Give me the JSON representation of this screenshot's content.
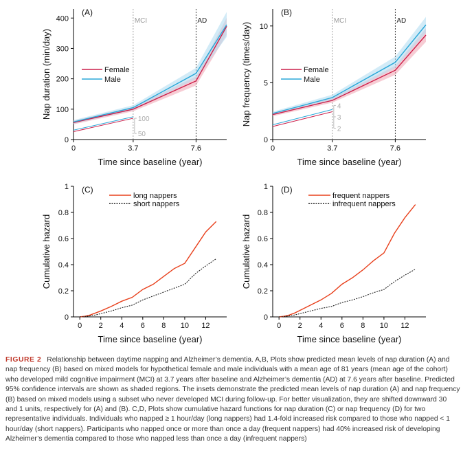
{
  "chart_data": [
    {
      "type": "line",
      "panel_label": "(A)",
      "xlabel": "Time since baseline (year)",
      "ylabel": "Nap duration (min/day)",
      "xlim": [
        0,
        9.5
      ],
      "ylim": [
        0,
        430
      ],
      "xticks": [
        0,
        3.7,
        7.6
      ],
      "xtick_labels": [
        "0",
        "3.7",
        "7.6"
      ],
      "yticks": [
        0,
        100,
        200,
        300,
        400
      ],
      "vlines": [
        {
          "x": 3.7,
          "label": "MCI",
          "color": "#999999"
        },
        {
          "x": 7.6,
          "label": "AD",
          "color": "#222222"
        }
      ],
      "legend": "center-left",
      "series": [
        {
          "name": "Female",
          "color": "#cc1f4a",
          "band_color": "#f2aab8",
          "x": [
            0,
            3.7,
            7.6,
            9.5
          ],
          "values": [
            56,
            100,
            193,
            373
          ],
          "lower": [
            50,
            93,
            178,
            345
          ],
          "upper": [
            62,
            107,
            208,
            401
          ]
        },
        {
          "name": "Male",
          "color": "#29a7d8",
          "band_color": "#b4ddf1",
          "x": [
            0,
            3.7,
            7.6,
            9.5
          ],
          "values": [
            58,
            105,
            218,
            378
          ],
          "lower": [
            52,
            97,
            200,
            338
          ],
          "upper": [
            64,
            113,
            236,
            420
          ]
        }
      ],
      "inset": {
        "x": [
          0,
          3.7
        ],
        "series": [
          {
            "name": "Female",
            "values": [
              26,
              70
            ]
          },
          {
            "name": "Male",
            "values": [
              31,
              75
            ]
          }
        ],
        "ticks": [
          100,
          50
        ],
        "shift": 30
      }
    },
    {
      "type": "line",
      "panel_label": "(B)",
      "xlabel": "Time since baseline (year)",
      "ylabel": "Nap frequency (times/day)",
      "xlim": [
        0,
        9.5
      ],
      "ylim": [
        0,
        11.5
      ],
      "xticks": [
        0,
        3.7,
        7.6
      ],
      "xtick_labels": [
        "0",
        "3.7",
        "7.6"
      ],
      "yticks": [
        0,
        5,
        10
      ],
      "vlines": [
        {
          "x": 3.7,
          "label": "MCI",
          "color": "#999999"
        },
        {
          "x": 7.6,
          "label": "AD",
          "color": "#222222"
        }
      ],
      "legend": "center-left",
      "series": [
        {
          "name": "Female",
          "color": "#cc1f4a",
          "band_color": "#f2aab8",
          "x": [
            0,
            3.7,
            7.6,
            9.5
          ],
          "values": [
            2.2,
            3.45,
            6.1,
            9.2
          ],
          "lower": [
            2.05,
            3.25,
            5.7,
            8.6
          ],
          "upper": [
            2.35,
            3.65,
            6.5,
            9.8
          ]
        },
        {
          "name": "Male",
          "color": "#29a7d8",
          "band_color": "#b4ddf1",
          "x": [
            0,
            3.7,
            7.6,
            9.5
          ],
          "values": [
            2.3,
            3.7,
            6.8,
            10.1
          ],
          "lower": [
            2.15,
            3.45,
            6.3,
            9.4
          ],
          "upper": [
            2.45,
            3.95,
            7.3,
            10.8
          ]
        }
      ],
      "inset": {
        "x": [
          0,
          3.7
        ],
        "series": [
          {
            "name": "Female",
            "values": [
              1.15,
              2.45
            ]
          },
          {
            "name": "Male",
            "values": [
              1.3,
              2.65
            ]
          }
        ],
        "ticks": [
          4,
          3,
          2
        ],
        "shift": 1
      }
    },
    {
      "type": "line",
      "panel_label": "(C)",
      "xlabel": "Time since baseline (year)",
      "ylabel": "Cumulative hazard",
      "xlim": [
        -0.6,
        14
      ],
      "ylim": [
        0,
        1
      ],
      "xticks": [
        0,
        2,
        4,
        6,
        8,
        10,
        12
      ],
      "yticks": [
        0,
        0.2,
        0.4,
        0.6,
        0.8,
        1
      ],
      "ytick_labels": [
        "0",
        "0.2",
        "0.4",
        "0.6",
        "0.8",
        "1"
      ],
      "legend": "top",
      "series": [
        {
          "name": "long nappers",
          "color": "#e8401c",
          "dash": "",
          "x": [
            0,
            0.5,
            1,
            1.5,
            2,
            3,
            4,
            5,
            6,
            7,
            8,
            9,
            10,
            11,
            12,
            13
          ],
          "values": [
            0,
            0.005,
            0.015,
            0.03,
            0.045,
            0.08,
            0.12,
            0.15,
            0.21,
            0.25,
            0.31,
            0.37,
            0.41,
            0.53,
            0.65,
            0.73
          ]
        },
        {
          "name": "short nappers",
          "color": "#222222",
          "dash": "2,1.5",
          "x": [
            0,
            0.5,
            1,
            1.5,
            2,
            3,
            4,
            5,
            6,
            7,
            8,
            9,
            10,
            11,
            12,
            13
          ],
          "values": [
            0,
            0.003,
            0.008,
            0.015,
            0.025,
            0.045,
            0.07,
            0.09,
            0.13,
            0.16,
            0.19,
            0.22,
            0.25,
            0.33,
            0.39,
            0.445
          ]
        }
      ]
    },
    {
      "type": "line",
      "panel_label": "(D)",
      "xlabel": "Time since baseline (year)",
      "ylabel": "Cumulative hazard",
      "xlim": [
        -0.6,
        14
      ],
      "ylim": [
        0,
        1
      ],
      "xticks": [
        0,
        2,
        4,
        6,
        8,
        10,
        12
      ],
      "yticks": [
        0,
        0.2,
        0.4,
        0.6,
        0.8,
        1
      ],
      "ytick_labels": [
        "0",
        "0.2",
        "0.4",
        "0.6",
        "0.8",
        "1"
      ],
      "legend": "top",
      "series": [
        {
          "name": "frequent nappers",
          "color": "#e8401c",
          "dash": "",
          "x": [
            0,
            0.5,
            1,
            1.5,
            2,
            3,
            4,
            5,
            6,
            7,
            8,
            9,
            10,
            11,
            12,
            13
          ],
          "values": [
            0,
            0.005,
            0.015,
            0.03,
            0.05,
            0.09,
            0.13,
            0.18,
            0.25,
            0.3,
            0.36,
            0.43,
            0.49,
            0.64,
            0.76,
            0.86
          ]
        },
        {
          "name": "infrequent nappers",
          "color": "#222222",
          "dash": "2,1.5",
          "x": [
            0,
            0.5,
            1,
            1.5,
            2,
            3,
            4,
            5,
            6,
            7,
            8,
            9,
            10,
            11,
            12,
            13
          ],
          "values": [
            0,
            0.003,
            0.008,
            0.015,
            0.025,
            0.045,
            0.065,
            0.08,
            0.11,
            0.13,
            0.155,
            0.185,
            0.21,
            0.27,
            0.32,
            0.365
          ]
        }
      ]
    }
  ],
  "caption": {
    "label": "FIGURE 2",
    "text": "Relationship between daytime napping and Alzheimer’s dementia. A,B, Plots show predicted mean levels of nap duration (A) and nap frequency (B) based on mixed models for hypothetical female and male individuals with a mean age of 81 years (mean age of the cohort) who developed mild cognitive impairment (MCI) at 3.7 years after baseline and Alzheimer’s dementia (AD) at 7.6 years after baseline. Predicted 95% confidence intervals are shown as shaded regions. The insets demonstrate the predicted mean levels of nap duration (A) and nap frequency (B) based on mixed models using a subset who never developed MCI during follow-up. For better visualization, they are shifted downward 30 and 1 units, respectively for (A) and (B). C,D, Plots show cumulative hazard functions for nap duration (C) or nap frequency (D) for two representative individuals. Individuals who napped ≥ 1 hour/day (long nappers) had 1.4-fold increased risk compared to those who napped < 1 hour/day (short nappers). Participants who napped once or more than once a day (frequent nappers) had 40% increased risk of developing Alzheimer’s dementia compared to those who napped less than once a day (infrequent nappers)"
  }
}
